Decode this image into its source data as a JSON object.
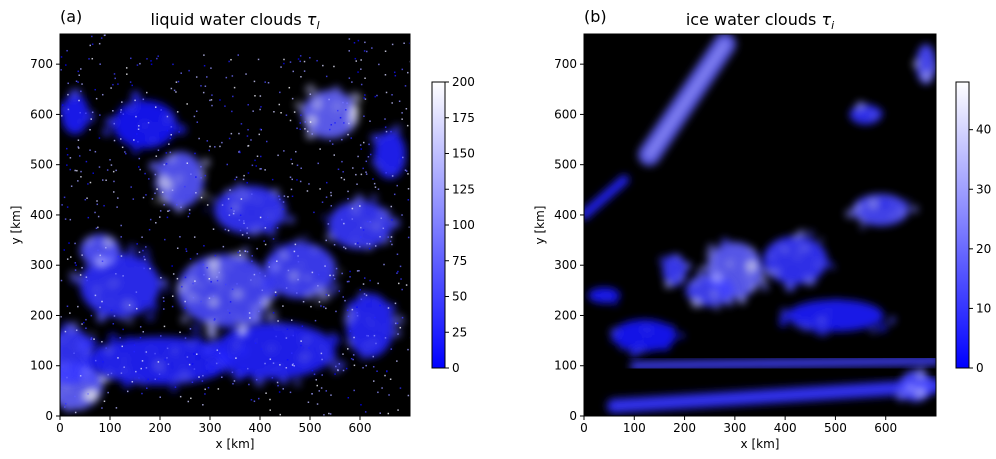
{
  "chart_data": [
    {
      "type": "heatmap",
      "panel_label": "(a)",
      "title": "liquid water clouds",
      "title_symbol": "τ",
      "title_subscript": "l",
      "xlabel": "x [km]",
      "ylabel": "y [km]",
      "xlim": [
        0,
        700
      ],
      "ylim": [
        0,
        760
      ],
      "xticks": [
        0,
        100,
        200,
        300,
        400,
        500,
        600
      ],
      "yticks": [
        0,
        100,
        200,
        300,
        400,
        500,
        600,
        700
      ],
      "colorbar": {
        "min": 0,
        "max": 200,
        "ticks": [
          0,
          25,
          50,
          75,
          100,
          125,
          150,
          175,
          200
        ]
      },
      "colormap": [
        "#0000ff",
        "#ffffff"
      ],
      "background": "#000000",
      "cloud_regions": [
        {
          "x": 30,
          "y": 60,
          "rx": 70,
          "ry": 60,
          "v": 170
        },
        {
          "x": 20,
          "y": 120,
          "rx": 60,
          "ry": 70,
          "v": 90
        },
        {
          "x": 200,
          "y": 110,
          "rx": 180,
          "ry": 60,
          "v": 60
        },
        {
          "x": 430,
          "y": 130,
          "rx": 150,
          "ry": 70,
          "v": 55
        },
        {
          "x": 120,
          "y": 260,
          "rx": 100,
          "ry": 80,
          "v": 80
        },
        {
          "x": 330,
          "y": 250,
          "rx": 120,
          "ry": 90,
          "v": 130
        },
        {
          "x": 480,
          "y": 290,
          "rx": 90,
          "ry": 70,
          "v": 110
        },
        {
          "x": 600,
          "y": 380,
          "rx": 80,
          "ry": 60,
          "v": 100
        },
        {
          "x": 80,
          "y": 330,
          "rx": 50,
          "ry": 40,
          "v": 140
        },
        {
          "x": 240,
          "y": 470,
          "rx": 60,
          "ry": 70,
          "v": 150
        },
        {
          "x": 380,
          "y": 410,
          "rx": 90,
          "ry": 60,
          "v": 90
        },
        {
          "x": 540,
          "y": 600,
          "rx": 70,
          "ry": 60,
          "v": 175
        },
        {
          "x": 30,
          "y": 600,
          "rx": 35,
          "ry": 50,
          "v": 50
        },
        {
          "x": 170,
          "y": 580,
          "rx": 80,
          "ry": 60,
          "v": 40
        },
        {
          "x": 620,
          "y": 180,
          "rx": 60,
          "ry": 80,
          "v": 70
        },
        {
          "x": 660,
          "y": 520,
          "rx": 40,
          "ry": 60,
          "v": 60
        }
      ]
    },
    {
      "type": "heatmap",
      "panel_label": "(b)",
      "title": "ice water clouds",
      "title_symbol": "τ",
      "title_subscript": "i",
      "xlabel": "x [km]",
      "ylabel": "y [km]",
      "xlim": [
        0,
        700
      ],
      "ylim": [
        0,
        760
      ],
      "xticks": [
        0,
        100,
        200,
        300,
        400,
        500,
        600
      ],
      "yticks": [
        0,
        100,
        200,
        300,
        400,
        500,
        600,
        700
      ],
      "colorbar": {
        "min": 0,
        "max": 48,
        "ticks": [
          0,
          10,
          20,
          30,
          40
        ]
      },
      "colormap": [
        "#0000ff",
        "#ffffff"
      ],
      "background": "#000000",
      "cloud_regions": [
        {
          "x": 300,
          "y": 290,
          "rx": 70,
          "ry": 70,
          "v": 40
        },
        {
          "x": 250,
          "y": 250,
          "rx": 60,
          "ry": 40,
          "v": 28
        },
        {
          "x": 420,
          "y": 310,
          "rx": 80,
          "ry": 60,
          "v": 22
        },
        {
          "x": 590,
          "y": 410,
          "rx": 70,
          "ry": 40,
          "v": 30
        },
        {
          "x": 180,
          "y": 290,
          "rx": 30,
          "ry": 40,
          "v": 25
        },
        {
          "x": 680,
          "y": 700,
          "rx": 25,
          "ry": 50,
          "v": 30
        },
        {
          "x": 560,
          "y": 600,
          "rx": 40,
          "ry": 25,
          "v": 20
        },
        {
          "x": 660,
          "y": 60,
          "rx": 40,
          "ry": 40,
          "v": 30
        },
        {
          "x": 120,
          "y": 160,
          "rx": 80,
          "ry": 40,
          "v": 10
        },
        {
          "x": 500,
          "y": 200,
          "rx": 120,
          "ry": 40,
          "v": 12
        },
        {
          "x": 40,
          "y": 240,
          "rx": 40,
          "ry": 20,
          "v": 8
        }
      ],
      "cloud_bands": [
        {
          "x1": 130,
          "y1": 520,
          "x2": 280,
          "y2": 740,
          "w": 45,
          "v": 18
        },
        {
          "x1": 60,
          "y1": 20,
          "x2": 700,
          "y2": 60,
          "w": 30,
          "v": 8
        },
        {
          "x1": 100,
          "y1": 100,
          "x2": 700,
          "y2": 110,
          "w": 18,
          "v": 10
        },
        {
          "x1": 0,
          "y1": 400,
          "x2": 80,
          "y2": 470,
          "w": 20,
          "v": 6
        }
      ]
    }
  ]
}
